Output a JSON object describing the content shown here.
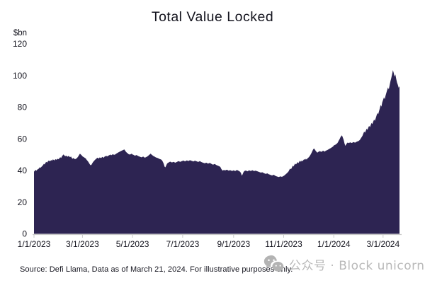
{
  "title": "Total Value Locked",
  "footer": {
    "source_text": "Source: Defi Llama, Data as of March 21, 2024. For illustrative purposes only."
  },
  "watermark": {
    "icon": "wechat-icon",
    "text": "公众号 · Block unicorn"
  },
  "colors": {
    "area_fill": "#2d2452",
    "axis": "#c9c9c9",
    "text": "#14141e",
    "watermark_gray": "#b9b9b9",
    "background": "#ffffff"
  },
  "chart_data": {
    "type": "area",
    "title": "Total Value Locked",
    "ylabel": "$bn",
    "ylim": [
      0,
      120
    ],
    "y_ticks": [
      0,
      20,
      40,
      60,
      80,
      100,
      120
    ],
    "x_unit": "days since 1/1/2023",
    "x_range_days": [
      0,
      445
    ],
    "x_ticks": [
      {
        "day": 0,
        "label": "1/1/2023"
      },
      {
        "day": 59,
        "label": "3/1/2023"
      },
      {
        "day": 120,
        "label": "5/1/2023"
      },
      {
        "day": 181,
        "label": "7/1/2023"
      },
      {
        "day": 243,
        "label": "9/1/2023"
      },
      {
        "day": 304,
        "label": "11/1/2023"
      },
      {
        "day": 365,
        "label": "1/1/2024"
      },
      {
        "day": 425,
        "label": "3/1/2024"
      }
    ],
    "grid": false,
    "legend": false,
    "series": [
      {
        "name": "Total Value Locked ($bn)",
        "start_day": 0,
        "step_days": 1,
        "values": [
          39.3,
          39.9,
          40.4,
          39.9,
          40.6,
          40.9,
          41.3,
          42.1,
          41.7,
          42.3,
          42.8,
          43.5,
          44.2,
          43.8,
          44.9,
          45.4,
          45.0,
          45.8,
          46.3,
          45.9,
          46.1,
          46.6,
          46.2,
          47.0,
          46.7,
          46.4,
          47.2,
          46.8,
          47.0,
          47.4,
          47.1,
          47.8,
          48.4,
          47.9,
          48.9,
          49.6,
          50.2,
          49.5,
          49.0,
          49.4,
          49.0,
          48.7,
          49.2,
          48.8,
          48.4,
          48.9,
          47.9,
          47.4,
          47.9,
          47.5,
          47.1,
          47.4,
          47.7,
          48.3,
          49.0,
          49.9,
          50.6,
          50.1,
          49.6,
          49.0,
          48.6,
          48.3,
          47.9,
          47.6,
          46.8,
          46.2,
          45.6,
          44.7,
          43.9,
          43.3,
          43.7,
          44.6,
          45.4,
          46.0,
          46.6,
          47.1,
          47.5,
          48.1,
          47.8,
          47.6,
          48.3,
          48.0,
          47.9,
          48.6,
          48.3,
          48.1,
          48.8,
          49.0,
          49.3,
          48.9,
          49.2,
          49.5,
          49.8,
          50.1,
          49.6,
          50.0,
          50.3,
          50.0,
          49.9,
          50.2,
          50.6,
          50.9,
          51.2,
          51.5,
          51.8,
          52.1,
          52.3,
          52.6,
          52.8,
          53.1,
          53.3,
          52.5,
          51.8,
          51.3,
          50.9,
          50.4,
          50.2,
          50.1,
          50.4,
          50.6,
          50.1,
          49.9,
          49.6,
          49.4,
          49.6,
          49.8,
          49.4,
          49.1,
          48.9,
          48.7,
          48.5,
          48.3,
          48.6,
          48.8,
          48.4,
          48.1,
          48.3,
          48.6,
          48.9,
          49.3,
          49.8,
          50.2,
          50.7,
          50.1,
          49.7,
          49.3,
          49.0,
          48.7,
          48.4,
          48.2,
          48.0,
          47.8,
          47.5,
          47.3,
          47.1,
          46.9,
          46.3,
          45.4,
          44.2,
          42.4,
          42.0,
          43.2,
          44.3,
          44.8,
          45.1,
          45.4,
          45.6,
          45.3,
          45.1,
          45.3,
          45.5,
          45.2,
          44.9,
          45.2,
          45.4,
          45.7,
          45.9,
          45.7,
          45.5,
          45.7,
          45.9,
          46.1,
          46.3,
          46.0,
          45.8,
          46.1,
          46.4,
          46.2,
          46.0,
          46.3,
          46.5,
          46.3,
          46.1,
          45.9,
          45.7,
          46.0,
          46.2,
          46.0,
          45.8,
          45.6,
          45.4,
          45.7,
          45.9,
          45.6,
          45.3,
          45.1,
          44.9,
          44.7,
          44.6,
          44.8,
          44.9,
          44.6,
          44.4,
          44.6,
          44.8,
          44.5,
          44.2,
          43.9,
          43.7,
          43.9,
          44.1,
          43.8,
          43.5,
          43.2,
          43.0,
          42.8,
          42.6,
          42.1,
          41.0,
          40.3,
          39.9,
          40.4,
          40.2,
          40.1,
          40.3,
          40.5,
          40.2,
          39.9,
          40.1,
          40.2,
          40.0,
          39.7,
          39.9,
          40.1,
          39.9,
          39.7,
          40.0,
          40.3,
          40.1,
          39.8,
          39.5,
          39.2,
          38.4,
          36.8,
          37.6,
          38.9,
          39.6,
          39.8,
          40.0,
          39.7,
          39.5,
          39.8,
          40.1,
          39.9,
          39.7,
          40.0,
          40.2,
          39.9,
          39.6,
          39.8,
          39.9,
          39.7,
          39.5,
          39.3,
          39.1,
          38.9,
          38.7,
          38.8,
          38.9,
          38.6,
          38.3,
          38.1,
          37.9,
          38.0,
          38.2,
          37.9,
          37.6,
          37.4,
          37.2,
          37.0,
          36.9,
          37.1,
          37.3,
          36.9,
          36.6,
          36.4,
          36.2,
          36.0,
          35.9,
          36.1,
          36.3,
          36.1,
          36.0,
          36.3,
          36.6,
          37.0,
          37.4,
          37.9,
          38.3,
          38.9,
          39.5,
          40.6,
          41.2,
          40.8,
          41.9,
          43.1,
          42.5,
          43.6,
          44.4,
          43.8,
          44.6,
          45.3,
          44.7,
          45.6,
          46.2,
          45.5,
          46.4,
          45.8,
          46.6,
          47.2,
          46.7,
          47.4,
          46.9,
          47.7,
          48.1,
          48.6,
          49.4,
          50.3,
          51.2,
          52.4,
          53.4,
          53.9,
          53.2,
          52.4,
          51.8,
          51.2,
          51.7,
          52.0,
          52.3,
          52.0,
          51.8,
          52.2,
          52.5,
          52.2,
          52.0,
          52.4,
          52.7,
          52.9,
          53.2,
          53.5,
          53.8,
          54.1,
          54.4,
          54.8,
          55.1,
          55.8,
          56.1,
          56.3,
          56.7,
          57.1,
          57.8,
          58.9,
          59.8,
          60.9,
          61.7,
          62.2,
          60.8,
          59.3,
          57.2,
          55.6,
          56.4,
          57.2,
          57.7,
          57.3,
          57.5,
          57.8,
          57.6,
          57.4,
          57.7,
          58.0,
          57.8,
          57.6,
          57.9,
          58.2,
          58.4,
          58.6,
          59.0,
          59.5,
          60.4,
          61.2,
          62.0,
          63.4,
          64.6,
          63.9,
          65.2,
          66.4,
          65.7,
          67.1,
          68.2,
          67.4,
          68.8,
          70.1,
          69.3,
          70.9,
          72.2,
          71.4,
          73.0,
          74.6,
          76.4,
          75.5,
          77.3,
          79.2,
          81.4,
          80.3,
          83.0,
          84.6,
          86.2,
          85.1,
          87.3,
          89.0,
          90.8,
          92.5,
          91.2,
          94.0,
          96.3,
          98.4,
          100.9,
          103.4,
          101.6,
          99.3,
          100.7,
          97.8,
          95.6,
          94.1,
          92.3,
          93.2
        ]
      }
    ]
  }
}
